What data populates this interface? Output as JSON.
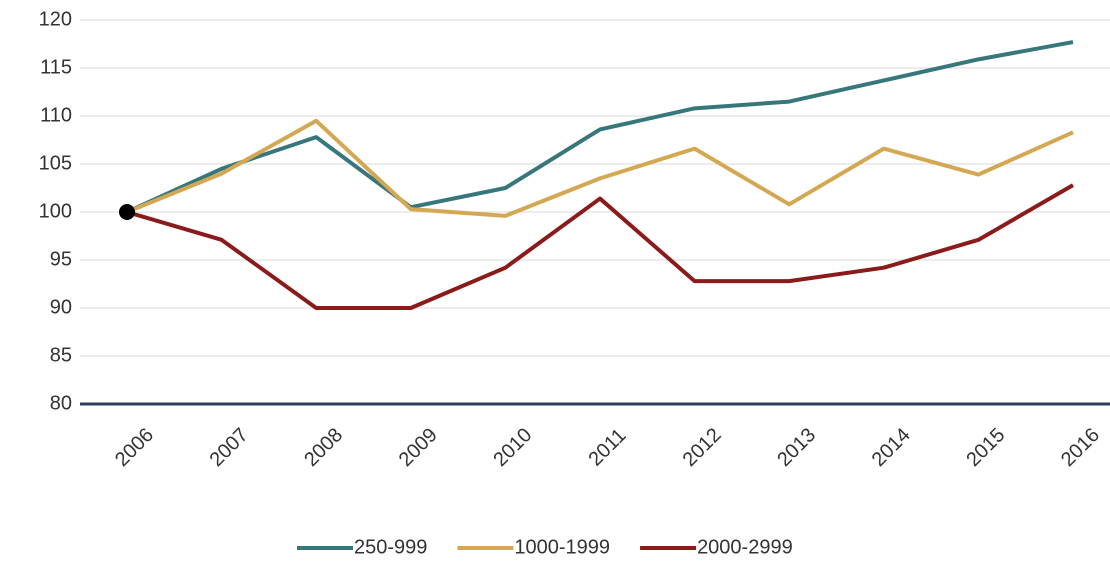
{
  "chart_data": {
    "type": "line",
    "categories": [
      "2006",
      "2007",
      "2008",
      "2009",
      "2010",
      "2011",
      "2012",
      "2013",
      "2014",
      "2015",
      "2016"
    ],
    "series": [
      {
        "name": "250-999",
        "color": "#37767b",
        "values": [
          100,
          104.5,
          107.8,
          100.5,
          102.5,
          108.6,
          110.8,
          111.5,
          113.7,
          115.9,
          117.7
        ]
      },
      {
        "name": "1000-1999",
        "color": "#d4a852",
        "values": [
          100,
          104,
          109.5,
          100.3,
          99.6,
          103.5,
          106.6,
          100.8,
          106.6,
          103.9,
          108.3
        ]
      },
      {
        "name": "2000-2999",
        "color": "#8b1a1a",
        "values": [
          100,
          97.1,
          90,
          90,
          94.2,
          101.4,
          92.8,
          92.8,
          94.2,
          97.1,
          102.8
        ]
      }
    ],
    "marker": {
      "category": "2006",
      "value": 100,
      "color": "#000000"
    },
    "ylim": [
      80,
      120
    ],
    "yticks": [
      80,
      85,
      90,
      95,
      100,
      105,
      110,
      115,
      120
    ],
    "grid": true,
    "legend": "bottom"
  }
}
